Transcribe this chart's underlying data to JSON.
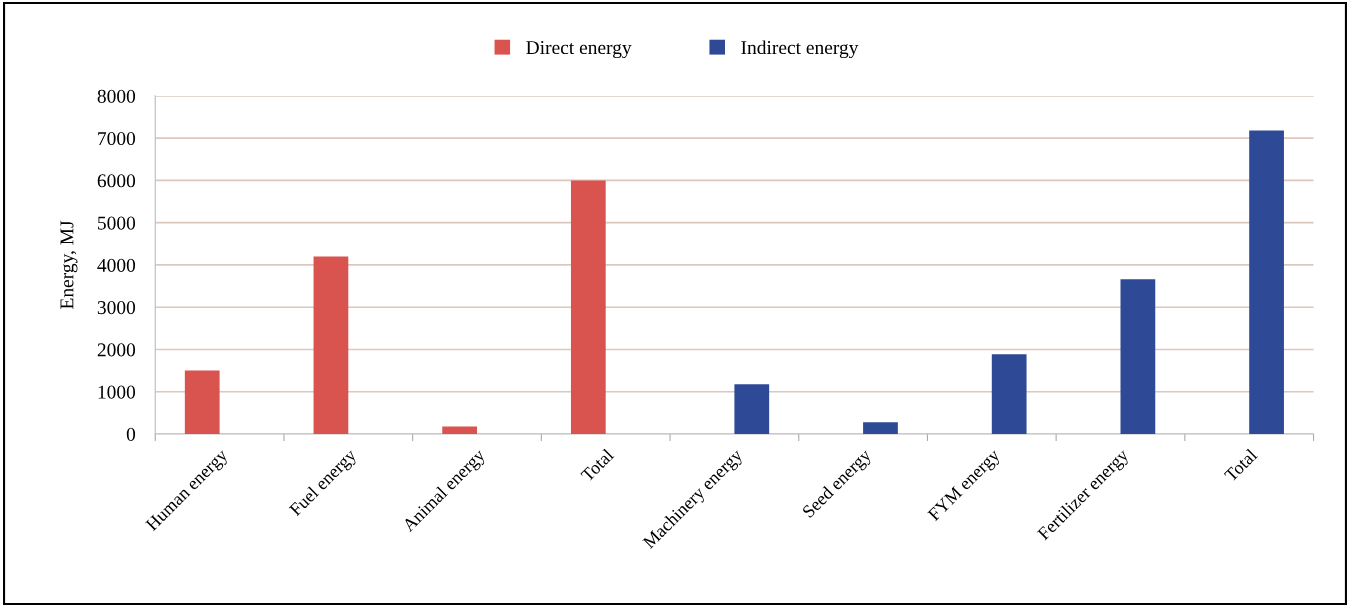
{
  "chart_data": {
    "type": "bar",
    "ylabel": "Energy, MJ",
    "categories": [
      "Human energy",
      "Fuel energy",
      "Animal energy",
      "Total",
      "Machinery energy",
      "Seed energy",
      "FYM energy",
      "Fertilizer energy",
      "Total"
    ],
    "series": [
      {
        "name": "Direct energy",
        "color": "#d9534f",
        "values": [
          1500,
          4200,
          180,
          6000,
          null,
          null,
          null,
          null,
          null
        ]
      },
      {
        "name": "Indirect energy",
        "color": "#2e4a96",
        "values": [
          null,
          null,
          null,
          null,
          1180,
          280,
          1890,
          3660,
          7180
        ]
      }
    ],
    "ylim": [
      0,
      8000
    ],
    "yticks": [
      0,
      1000,
      2000,
      3000,
      4000,
      5000,
      6000,
      7000,
      8000
    ],
    "grid": "y",
    "legend": "top"
  }
}
